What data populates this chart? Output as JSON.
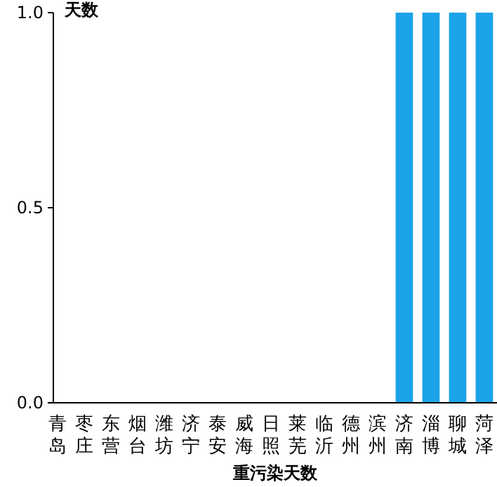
{
  "chart_data": {
    "type": "bar",
    "xlabel": "重污染天数",
    "ylabel": "天数",
    "categories": [
      "青岛",
      "枣庄",
      "东营",
      "烟台",
      "潍坊",
      "济宁",
      "泰安",
      "威海",
      "日照",
      "莱芜",
      "临沂",
      "德州",
      "滨州",
      "济南",
      "淄博",
      "聊城",
      "菏泽"
    ],
    "values": [
      0,
      0,
      0,
      0,
      0,
      0,
      0,
      0,
      0,
      0,
      0,
      0,
      0,
      1,
      1,
      1,
      1
    ],
    "color": "#1aa3e8",
    "ylim": [
      0,
      1
    ],
    "yticks": [
      {
        "value": 0,
        "label": "0.0"
      },
      {
        "value": 0.5,
        "label": "0.5"
      },
      {
        "value": 1,
        "label": "1.0"
      }
    ]
  }
}
